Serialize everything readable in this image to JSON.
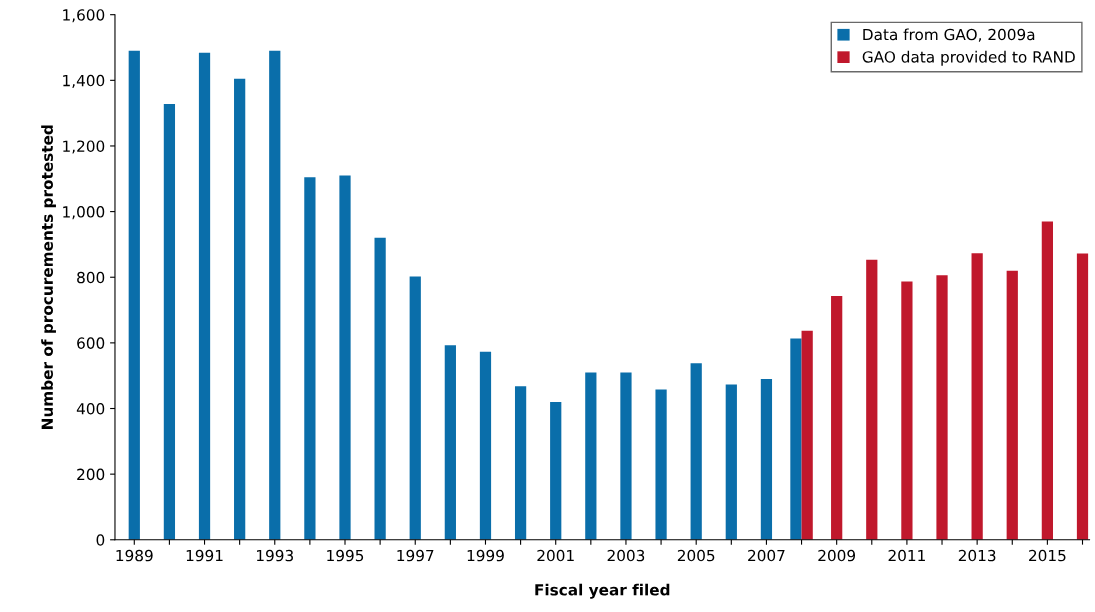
{
  "chart_data": {
    "type": "bar",
    "xlabel": "Fiscal year filed",
    "ylabel": "Number of procurements protested",
    "categories": [
      "1989",
      null,
      "1991",
      null,
      "1993",
      null,
      "1995",
      null,
      "1997",
      null,
      "1999",
      null,
      "2001",
      null,
      "2003",
      null,
      "2005",
      null,
      "2007",
      null,
      "2009",
      null,
      "2011",
      null,
      "2013",
      null,
      "2015",
      null
    ],
    "series": [
      {
        "name": "Data from GAO, 2009a",
        "color": "#0a6eaa",
        "values": [
          1490,
          1328,
          1484,
          1405,
          1490,
          1105,
          1110,
          920,
          802,
          593,
          573,
          468,
          420,
          510,
          510,
          458,
          538,
          473,
          490,
          613,
          null,
          null,
          null,
          null,
          null,
          null,
          null,
          null
        ]
      },
      {
        "name": "GAO data provided to RAND",
        "color": "#c0182c",
        "values": [
          null,
          null,
          null,
          null,
          null,
          null,
          null,
          null,
          null,
          null,
          null,
          null,
          null,
          null,
          null,
          null,
          null,
          null,
          null,
          637,
          743,
          853,
          787,
          806,
          873,
          820,
          970,
          872
        ]
      }
    ],
    "ylim": [
      0,
      1600
    ],
    "yticks": [
      {
        "value": 0,
        "label": "0"
      },
      {
        "value": 200,
        "label": "200"
      },
      {
        "value": 400,
        "label": "400"
      },
      {
        "value": 600,
        "label": "600"
      },
      {
        "value": 800,
        "label": "800"
      },
      {
        "value": 1000,
        "label": "1,000"
      },
      {
        "value": 1200,
        "label": "1,200"
      },
      {
        "value": 1400,
        "label": "1,400"
      },
      {
        "value": 1600,
        "label": "1,600"
      }
    ],
    "grid": false,
    "legend": "top right"
  }
}
